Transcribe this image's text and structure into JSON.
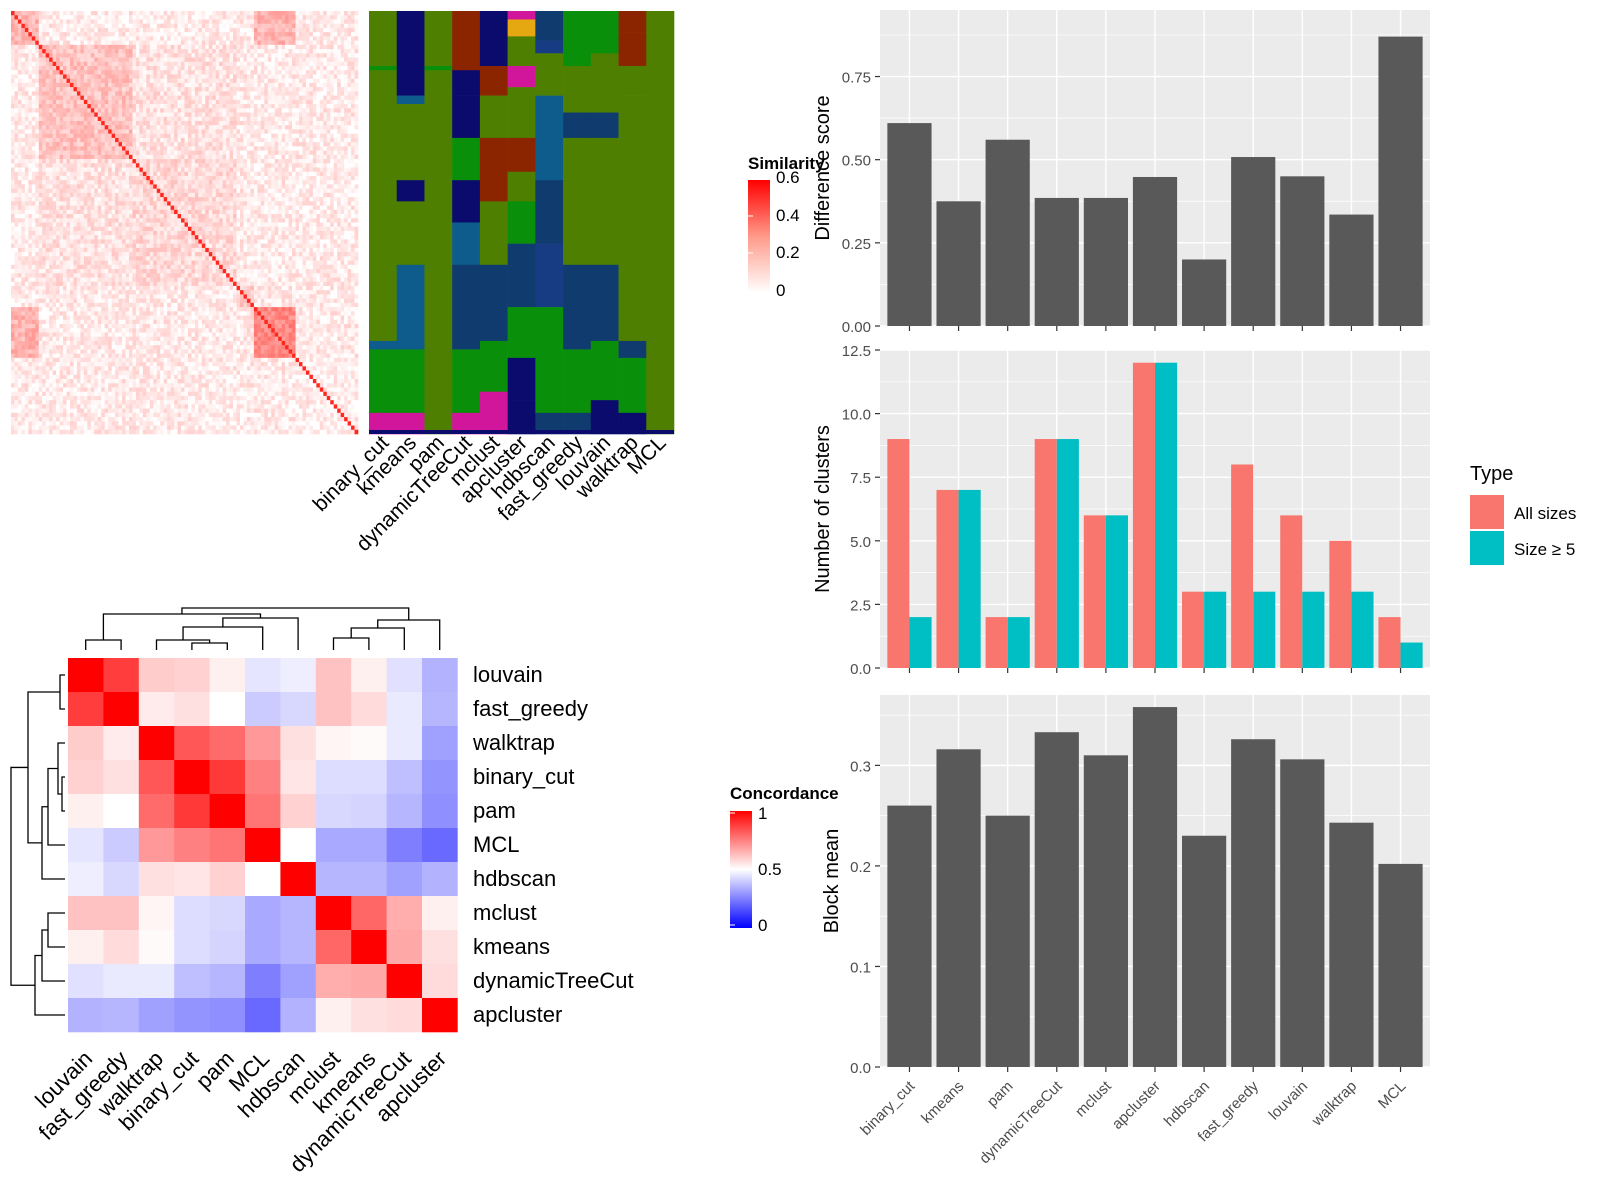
{
  "methods_barorder": [
    "binary_cut",
    "kmeans",
    "pam",
    "dynamicTreeCut",
    "mclust",
    "apcluster",
    "hdbscan",
    "fast_greedy",
    "louvain",
    "walktrap",
    "MCL"
  ],
  "legend_similarity": {
    "title": "Similarity",
    "ticks": [
      "0.6",
      "0.4",
      "0.2",
      "0"
    ]
  },
  "legend_concordance": {
    "title": "Concordance",
    "ticks": [
      "1",
      "0.5",
      "0"
    ]
  },
  "legend_type": {
    "title": "Type",
    "items": [
      "All sizes",
      "Size ≥ 5"
    ],
    "colors": [
      "#F8766D",
      "#00BFC4"
    ]
  },
  "heatmap_annotation": {
    "columns": [
      "binary_cut",
      "kmeans",
      "pam",
      "dynamicTreeCut",
      "mclust",
      "apcluster",
      "hdbscan",
      "fast_greedy",
      "louvain",
      "walktrap",
      "MCL"
    ],
    "colors": [
      "#4E7F00",
      "#0A8F0A",
      "#0B0B6E",
      "#8B2500",
      "#0F3B6E",
      "#D2169C",
      "#0E5C8C",
      "#E6A811",
      "#173C84"
    ]
  },
  "concordance": {
    "labels": [
      "louvain",
      "fast_greedy",
      "walktrap",
      "binary_cut",
      "pam",
      "MCL",
      "hdbscan",
      "mclust",
      "kmeans",
      "dynamicTreeCut",
      "apcluster"
    ],
    "matrix": [
      [
        1.0,
        0.88,
        0.6,
        0.59,
        0.53,
        0.44,
        0.46,
        0.62,
        0.53,
        0.43,
        0.32
      ],
      [
        0.88,
        1.0,
        0.54,
        0.56,
        0.5,
        0.38,
        0.41,
        0.62,
        0.57,
        0.45,
        0.33
      ],
      [
        0.6,
        0.54,
        1.0,
        0.83,
        0.79,
        0.7,
        0.56,
        0.52,
        0.51,
        0.45,
        0.28
      ],
      [
        0.59,
        0.56,
        0.83,
        1.0,
        0.89,
        0.75,
        0.55,
        0.42,
        0.42,
        0.35,
        0.25
      ],
      [
        0.53,
        0.5,
        0.79,
        0.89,
        1.0,
        0.77,
        0.59,
        0.41,
        0.4,
        0.33,
        0.24
      ],
      [
        0.44,
        0.38,
        0.7,
        0.75,
        0.77,
        1.0,
        0.5,
        0.3,
        0.3,
        0.2,
        0.15
      ],
      [
        0.46,
        0.41,
        0.56,
        0.55,
        0.59,
        0.5,
        1.0,
        0.33,
        0.33,
        0.28,
        0.32
      ],
      [
        0.62,
        0.62,
        0.52,
        0.42,
        0.41,
        0.3,
        0.33,
        1.0,
        0.8,
        0.66,
        0.53
      ],
      [
        0.53,
        0.57,
        0.51,
        0.42,
        0.4,
        0.3,
        0.33,
        0.8,
        1.0,
        0.67,
        0.56
      ],
      [
        0.43,
        0.45,
        0.45,
        0.35,
        0.33,
        0.2,
        0.28,
        0.66,
        0.67,
        1.0,
        0.57
      ],
      [
        0.32,
        0.33,
        0.28,
        0.25,
        0.24,
        0.15,
        0.32,
        0.53,
        0.56,
        0.57,
        1.0
      ]
    ]
  },
  "chart_data": [
    {
      "type": "heatmap",
      "title": "",
      "legend_title": "Similarity",
      "value_range": [
        0,
        0.6
      ],
      "note": "term similarity matrix with cluster annotation columns"
    },
    {
      "type": "bar",
      "ylabel": "Difference score",
      "categories": [
        "binary_cut",
        "kmeans",
        "pam",
        "dynamicTreeCut",
        "mclust",
        "apcluster",
        "hdbscan",
        "fast_greedy",
        "louvain",
        "walktrap",
        "MCL"
      ],
      "values": [
        0.61,
        0.375,
        0.56,
        0.385,
        0.385,
        0.448,
        0.2,
        0.508,
        0.45,
        0.335,
        0.87
      ],
      "ylim": [
        0,
        0.95
      ],
      "yticks": [
        "0.00",
        "0.25",
        "0.50",
        "0.75"
      ]
    },
    {
      "type": "bar",
      "ylabel": "Number of clusters",
      "categories": [
        "binary_cut",
        "kmeans",
        "pam",
        "dynamicTreeCut",
        "mclust",
        "apcluster",
        "hdbscan",
        "fast_greedy",
        "louvain",
        "walktrap",
        "MCL"
      ],
      "series": [
        {
          "name": "All sizes",
          "values": [
            9,
            7,
            2,
            9,
            6,
            12,
            3,
            8,
            6,
            5,
            2
          ]
        },
        {
          "name": "Size ≥ 5",
          "values": [
            2,
            7,
            2,
            9,
            6,
            12,
            3,
            3,
            3,
            3,
            1
          ]
        }
      ],
      "ylim": [
        0,
        12.5
      ],
      "yticks": [
        "0.0",
        "2.5",
        "5.0",
        "7.5",
        "10.0",
        "12.5"
      ],
      "legend_title": "Type"
    },
    {
      "type": "bar",
      "ylabel": "Block mean",
      "categories": [
        "binary_cut",
        "kmeans",
        "pam",
        "dynamicTreeCut",
        "mclust",
        "apcluster",
        "hdbscan",
        "fast_greedy",
        "louvain",
        "walktrap",
        "MCL"
      ],
      "values": [
        0.26,
        0.316,
        0.25,
        0.333,
        0.31,
        0.358,
        0.23,
        0.326,
        0.306,
        0.243,
        0.202
      ],
      "ylim": [
        0,
        0.37
      ],
      "yticks": [
        "0.0",
        "0.1",
        "0.2",
        "0.3"
      ]
    }
  ]
}
